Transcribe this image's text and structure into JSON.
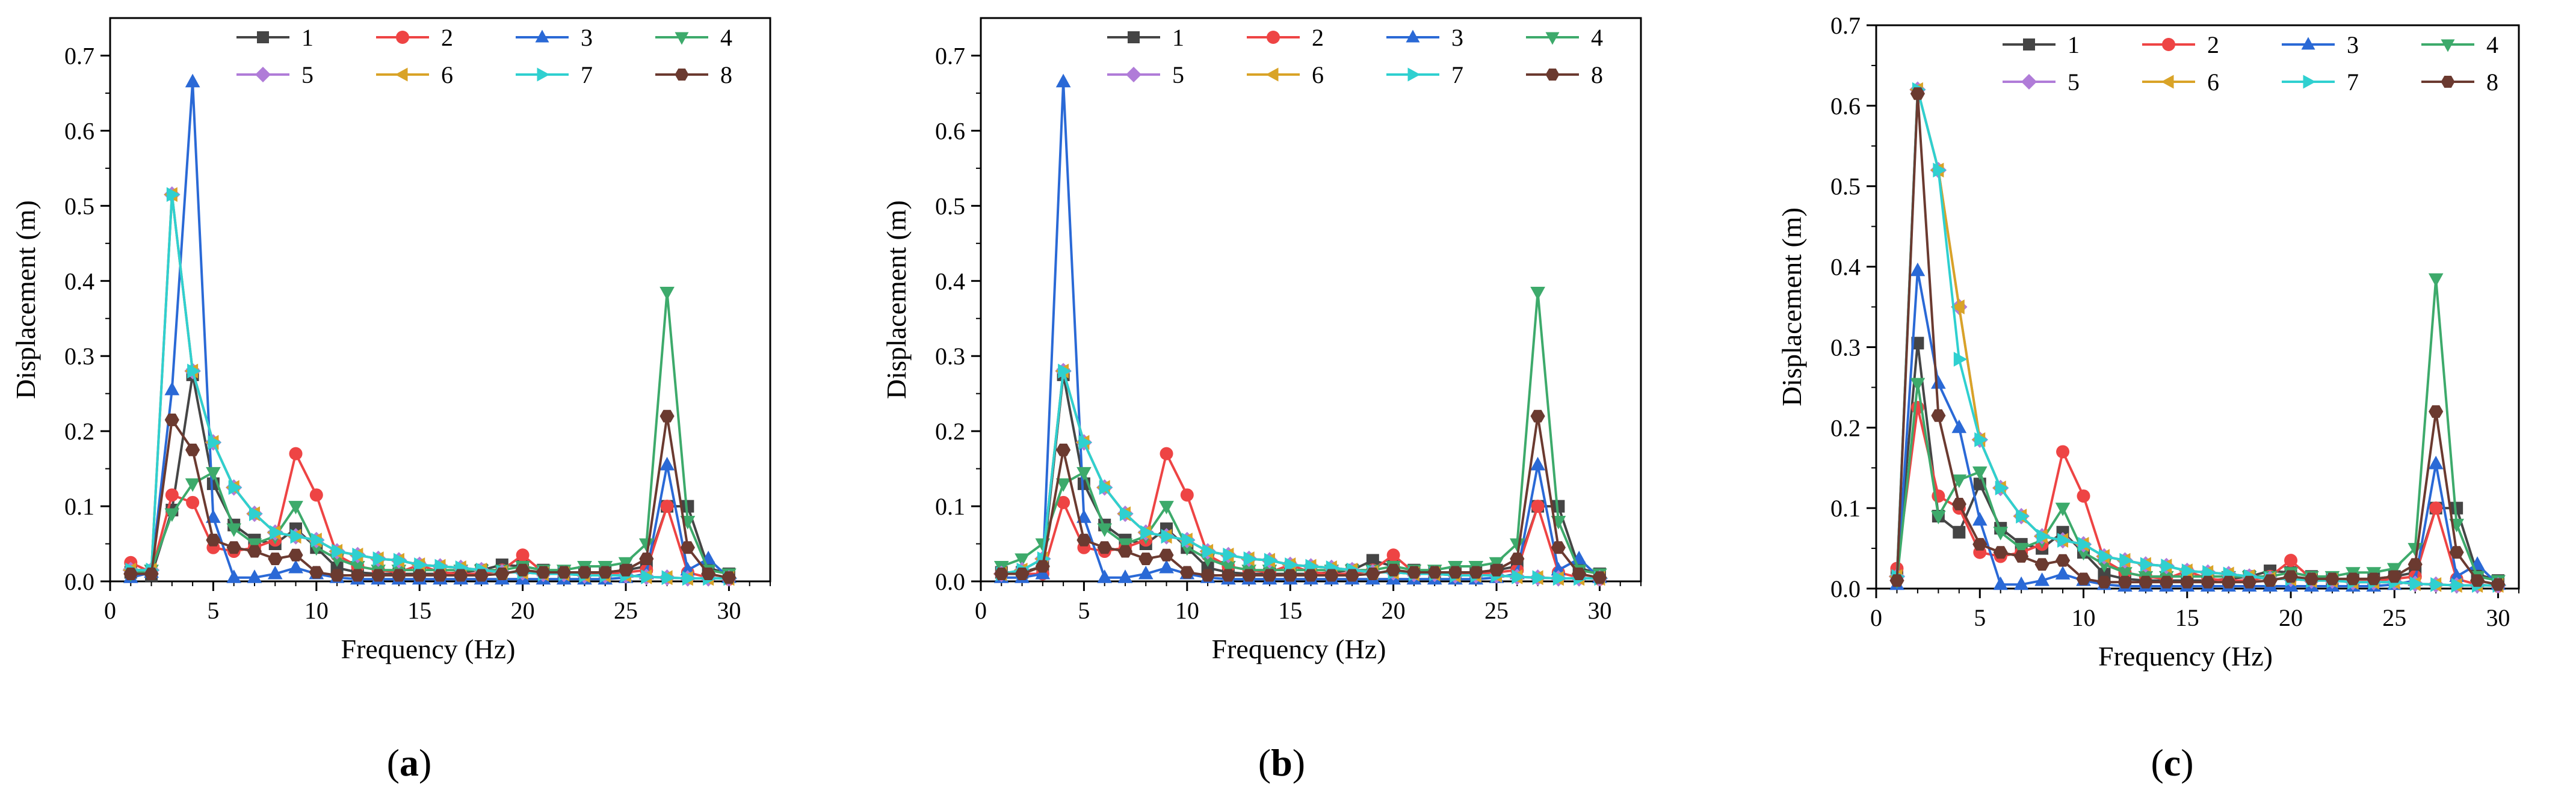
{
  "figure": {
    "panel_labels": [
      "(a)",
      "(b)",
      "(c)"
    ]
  },
  "colors": {
    "s1": "#454545",
    "s2": "#ee4444",
    "s3": "#2a69d6",
    "s4": "#3daa6b",
    "s5": "#b07cd8",
    "s6": "#d9a327",
    "s7": "#2fd0d0",
    "s8": "#6b3a30"
  },
  "chart_data": [
    {
      "type": "line",
      "panel": "(a)",
      "xlabel": "Frequency (Hz)",
      "ylabel": "Displacement (m)",
      "xlim": [
        0,
        32
      ],
      "ylim": [
        0,
        0.75
      ],
      "xticks": [
        0,
        5,
        10,
        15,
        20,
        25,
        30
      ],
      "yticks": [
        0.0,
        0.1,
        0.2,
        0.3,
        0.4,
        0.5,
        0.6,
        0.7
      ],
      "ytick_labels": [
        "0.0",
        "0.1",
        "0.2",
        "0.3",
        "0.4",
        "0.5",
        "0.6",
        "0.7"
      ],
      "legend_location": "top-center",
      "x": [
        1,
        2,
        3,
        4,
        5,
        6,
        7,
        8,
        9,
        10,
        11,
        12,
        13,
        14,
        15,
        16,
        17,
        18,
        19,
        20,
        21,
        22,
        23,
        24,
        25,
        26,
        27,
        28,
        29,
        30
      ],
      "series": [
        {
          "name": "1",
          "marker": "square",
          "values": [
            0.012,
            0.008,
            0.095,
            0.275,
            0.13,
            0.075,
            0.055,
            0.05,
            0.07,
            0.045,
            0.018,
            0.012,
            0.01,
            0.01,
            0.01,
            0.01,
            0.012,
            0.015,
            0.022,
            0.02,
            0.015,
            0.012,
            0.012,
            0.012,
            0.015,
            0.02,
            0.1,
            0.1,
            0.018,
            0.01
          ]
        },
        {
          "name": "2",
          "marker": "circle",
          "values": [
            0.025,
            0.012,
            0.115,
            0.105,
            0.045,
            0.04,
            0.045,
            0.055,
            0.17,
            0.115,
            0.035,
            0.02,
            0.015,
            0.012,
            0.022,
            0.012,
            0.01,
            0.01,
            0.015,
            0.035,
            0.012,
            0.01,
            0.01,
            0.01,
            0.012,
            0.015,
            0.1,
            0.012,
            0.005,
            0.003
          ]
        },
        {
          "name": "3",
          "marker": "triangle-up",
          "values": [
            0.005,
            0.012,
            0.255,
            0.665,
            0.085,
            0.005,
            0.005,
            0.01,
            0.018,
            0.01,
            0.005,
            0.003,
            0.003,
            0.003,
            0.003,
            0.003,
            0.003,
            0.003,
            0.003,
            0.003,
            0.003,
            0.003,
            0.003,
            0.003,
            0.005,
            0.01,
            0.155,
            0.015,
            0.03,
            0.005
          ]
        },
        {
          "name": "4",
          "marker": "triangle-down",
          "values": [
            0.01,
            0.015,
            0.09,
            0.13,
            0.145,
            0.07,
            0.05,
            0.06,
            0.1,
            0.045,
            0.03,
            0.02,
            0.015,
            0.015,
            0.015,
            0.015,
            0.015,
            0.015,
            0.015,
            0.02,
            0.015,
            0.015,
            0.02,
            0.02,
            0.025,
            0.05,
            0.385,
            0.08,
            0.015,
            0.01
          ]
        },
        {
          "name": "5",
          "marker": "diamond",
          "values": [
            0.015,
            0.015,
            0.515,
            0.28,
            0.185,
            0.125,
            0.09,
            0.065,
            0.06,
            0.055,
            0.04,
            0.035,
            0.03,
            0.028,
            0.022,
            0.02,
            0.018,
            0.015,
            0.012,
            0.012,
            0.01,
            0.01,
            0.008,
            0.008,
            0.008,
            0.006,
            0.005,
            0.004,
            0.004,
            0.004
          ]
        },
        {
          "name": "6",
          "marker": "triangle-left",
          "values": [
            0.015,
            0.015,
            0.515,
            0.28,
            0.185,
            0.125,
            0.09,
            0.065,
            0.06,
            0.055,
            0.04,
            0.035,
            0.03,
            0.028,
            0.022,
            0.02,
            0.018,
            0.015,
            0.012,
            0.012,
            0.01,
            0.01,
            0.008,
            0.008,
            0.008,
            0.006,
            0.005,
            0.004,
            0.004,
            0.004
          ]
        },
        {
          "name": "7",
          "marker": "triangle-right",
          "values": [
            0.015,
            0.015,
            0.515,
            0.28,
            0.185,
            0.125,
            0.09,
            0.065,
            0.06,
            0.055,
            0.04,
            0.035,
            0.03,
            0.028,
            0.022,
            0.02,
            0.018,
            0.015,
            0.012,
            0.012,
            0.01,
            0.01,
            0.008,
            0.008,
            0.008,
            0.006,
            0.005,
            0.004,
            0.004,
            0.004
          ]
        },
        {
          "name": "8",
          "marker": "hexagon",
          "values": [
            0.01,
            0.01,
            0.215,
            0.175,
            0.055,
            0.045,
            0.04,
            0.03,
            0.035,
            0.012,
            0.008,
            0.008,
            0.008,
            0.008,
            0.008,
            0.008,
            0.008,
            0.008,
            0.01,
            0.015,
            0.012,
            0.012,
            0.012,
            0.012,
            0.015,
            0.03,
            0.22,
            0.045,
            0.01,
            0.005
          ]
        }
      ]
    },
    {
      "type": "line",
      "panel": "(b)",
      "xlabel": "Frequency (Hz)",
      "ylabel": "Displacement (m)",
      "xlim": [
        0,
        32
      ],
      "ylim": [
        0,
        0.75
      ],
      "xticks": [
        0,
        5,
        10,
        15,
        20,
        25,
        30
      ],
      "yticks": [
        0.0,
        0.1,
        0.2,
        0.3,
        0.4,
        0.5,
        0.6,
        0.7
      ],
      "ytick_labels": [
        "0.0",
        "0.1",
        "0.2",
        "0.3",
        "0.4",
        "0.5",
        "0.6",
        "0.7"
      ],
      "legend_location": "top-center",
      "x": [
        1,
        2,
        3,
        4,
        5,
        6,
        7,
        8,
        9,
        10,
        11,
        12,
        13,
        14,
        15,
        16,
        17,
        18,
        19,
        20,
        21,
        22,
        23,
        24,
        25,
        26,
        27,
        28,
        29,
        30
      ],
      "series": [
        {
          "name": "1",
          "marker": "square",
          "values": [
            0.012,
            0.012,
            0.02,
            0.275,
            0.13,
            0.075,
            0.055,
            0.05,
            0.07,
            0.045,
            0.018,
            0.012,
            0.01,
            0.01,
            0.01,
            0.01,
            0.012,
            0.015,
            0.028,
            0.02,
            0.015,
            0.012,
            0.012,
            0.012,
            0.015,
            0.02,
            0.1,
            0.1,
            0.018,
            0.01
          ]
        },
        {
          "name": "2",
          "marker": "circle",
          "values": [
            0.01,
            0.01,
            0.01,
            0.105,
            0.045,
            0.04,
            0.045,
            0.055,
            0.17,
            0.115,
            0.035,
            0.02,
            0.015,
            0.012,
            0.022,
            0.012,
            0.01,
            0.01,
            0.015,
            0.035,
            0.012,
            0.01,
            0.01,
            0.01,
            0.012,
            0.015,
            0.1,
            0.012,
            0.005,
            0.003
          ]
        },
        {
          "name": "3",
          "marker": "triangle-up",
          "values": [
            0.005,
            0.005,
            0.01,
            0.665,
            0.085,
            0.005,
            0.005,
            0.01,
            0.018,
            0.01,
            0.005,
            0.003,
            0.003,
            0.003,
            0.003,
            0.003,
            0.003,
            0.003,
            0.003,
            0.003,
            0.003,
            0.003,
            0.003,
            0.003,
            0.005,
            0.01,
            0.155,
            0.015,
            0.03,
            0.005
          ]
        },
        {
          "name": "4",
          "marker": "triangle-down",
          "values": [
            0.02,
            0.03,
            0.05,
            0.13,
            0.145,
            0.07,
            0.05,
            0.06,
            0.1,
            0.045,
            0.03,
            0.02,
            0.015,
            0.015,
            0.015,
            0.015,
            0.015,
            0.015,
            0.015,
            0.02,
            0.015,
            0.015,
            0.02,
            0.02,
            0.025,
            0.05,
            0.385,
            0.08,
            0.015,
            0.01
          ]
        },
        {
          "name": "5",
          "marker": "diamond",
          "values": [
            0.01,
            0.015,
            0.03,
            0.28,
            0.185,
            0.125,
            0.09,
            0.065,
            0.06,
            0.055,
            0.04,
            0.035,
            0.03,
            0.028,
            0.022,
            0.02,
            0.018,
            0.015,
            0.012,
            0.012,
            0.01,
            0.01,
            0.008,
            0.008,
            0.008,
            0.006,
            0.005,
            0.004,
            0.004,
            0.004
          ]
        },
        {
          "name": "6",
          "marker": "triangle-left",
          "values": [
            0.01,
            0.015,
            0.03,
            0.28,
            0.185,
            0.125,
            0.09,
            0.065,
            0.06,
            0.055,
            0.04,
            0.035,
            0.03,
            0.028,
            0.022,
            0.02,
            0.018,
            0.015,
            0.012,
            0.012,
            0.01,
            0.01,
            0.008,
            0.008,
            0.008,
            0.006,
            0.005,
            0.004,
            0.004,
            0.004
          ]
        },
        {
          "name": "7",
          "marker": "triangle-right",
          "values": [
            0.01,
            0.015,
            0.03,
            0.28,
            0.185,
            0.125,
            0.09,
            0.065,
            0.06,
            0.055,
            0.04,
            0.035,
            0.03,
            0.028,
            0.022,
            0.02,
            0.018,
            0.015,
            0.012,
            0.012,
            0.01,
            0.01,
            0.008,
            0.008,
            0.008,
            0.006,
            0.005,
            0.004,
            0.004,
            0.004
          ]
        },
        {
          "name": "8",
          "marker": "hexagon",
          "values": [
            0.01,
            0.01,
            0.02,
            0.175,
            0.055,
            0.045,
            0.04,
            0.03,
            0.035,
            0.012,
            0.008,
            0.008,
            0.008,
            0.008,
            0.008,
            0.008,
            0.008,
            0.008,
            0.01,
            0.015,
            0.012,
            0.012,
            0.012,
            0.012,
            0.015,
            0.03,
            0.22,
            0.045,
            0.01,
            0.005
          ]
        }
      ]
    },
    {
      "type": "line",
      "panel": "(c)",
      "xlabel": "Frequency (Hz)",
      "ylabel": "Displacement (m)",
      "xlim": [
        0,
        31
      ],
      "ylim": [
        0,
        0.7
      ],
      "xticks": [
        0,
        5,
        10,
        15,
        20,
        25,
        30
      ],
      "yticks": [
        0.0,
        0.1,
        0.2,
        0.3,
        0.4,
        0.5,
        0.6,
        0.7
      ],
      "ytick_labels": [
        "0.0",
        "0.1",
        "0.2",
        "0.3",
        "0.4",
        "0.5",
        "0.6",
        "0.7"
      ],
      "legend_location": "top-center",
      "x": [
        1,
        2,
        3,
        4,
        5,
        6,
        7,
        8,
        9,
        10,
        11,
        12,
        13,
        14,
        15,
        16,
        17,
        18,
        19,
        20,
        21,
        22,
        23,
        24,
        25,
        26,
        27,
        28,
        29,
        30
      ],
      "series": [
        {
          "name": "1",
          "marker": "square",
          "values": [
            0.02,
            0.305,
            0.09,
            0.07,
            0.13,
            0.075,
            0.055,
            0.05,
            0.07,
            0.045,
            0.018,
            0.012,
            0.01,
            0.01,
            0.01,
            0.01,
            0.012,
            0.015,
            0.022,
            0.02,
            0.015,
            0.012,
            0.012,
            0.012,
            0.015,
            0.02,
            0.1,
            0.1,
            0.018,
            0.01
          ]
        },
        {
          "name": "2",
          "marker": "circle",
          "values": [
            0.025,
            0.225,
            0.115,
            0.1,
            0.045,
            0.04,
            0.045,
            0.055,
            0.17,
            0.115,
            0.035,
            0.02,
            0.015,
            0.012,
            0.022,
            0.012,
            0.01,
            0.01,
            0.015,
            0.035,
            0.012,
            0.01,
            0.01,
            0.01,
            0.012,
            0.015,
            0.1,
            0.012,
            0.005,
            0.003
          ]
        },
        {
          "name": "3",
          "marker": "triangle-up",
          "values": [
            0.005,
            0.395,
            0.255,
            0.2,
            0.085,
            0.005,
            0.005,
            0.01,
            0.018,
            0.01,
            0.005,
            0.003,
            0.003,
            0.003,
            0.003,
            0.003,
            0.003,
            0.003,
            0.003,
            0.003,
            0.003,
            0.003,
            0.003,
            0.003,
            0.005,
            0.01,
            0.155,
            0.015,
            0.03,
            0.005
          ]
        },
        {
          "name": "4",
          "marker": "triangle-down",
          "values": [
            0.01,
            0.255,
            0.09,
            0.135,
            0.145,
            0.07,
            0.05,
            0.06,
            0.1,
            0.045,
            0.03,
            0.02,
            0.015,
            0.015,
            0.015,
            0.015,
            0.015,
            0.015,
            0.015,
            0.02,
            0.015,
            0.015,
            0.02,
            0.02,
            0.025,
            0.05,
            0.385,
            0.08,
            0.015,
            0.01
          ]
        },
        {
          "name": "5",
          "marker": "diamond",
          "values": [
            0.015,
            0.62,
            0.52,
            0.35,
            0.185,
            0.125,
            0.09,
            0.065,
            0.06,
            0.055,
            0.04,
            0.035,
            0.03,
            0.028,
            0.022,
            0.02,
            0.018,
            0.015,
            0.012,
            0.012,
            0.01,
            0.01,
            0.008,
            0.008,
            0.008,
            0.006,
            0.005,
            0.004,
            0.004,
            0.004
          ]
        },
        {
          "name": "6",
          "marker": "triangle-left",
          "values": [
            0.015,
            0.62,
            0.52,
            0.35,
            0.185,
            0.125,
            0.09,
            0.065,
            0.06,
            0.055,
            0.04,
            0.035,
            0.03,
            0.028,
            0.022,
            0.02,
            0.018,
            0.015,
            0.012,
            0.012,
            0.01,
            0.01,
            0.008,
            0.008,
            0.008,
            0.006,
            0.005,
            0.004,
            0.004,
            0.004
          ]
        },
        {
          "name": "7",
          "marker": "triangle-right",
          "values": [
            0.015,
            0.62,
            0.52,
            0.285,
            0.185,
            0.125,
            0.09,
            0.065,
            0.06,
            0.055,
            0.04,
            0.035,
            0.03,
            0.028,
            0.022,
            0.02,
            0.018,
            0.015,
            0.012,
            0.012,
            0.01,
            0.01,
            0.008,
            0.008,
            0.008,
            0.006,
            0.005,
            0.004,
            0.004,
            0.004
          ]
        },
        {
          "name": "8",
          "marker": "hexagon",
          "values": [
            0.01,
            0.615,
            0.215,
            0.105,
            0.055,
            0.045,
            0.04,
            0.03,
            0.035,
            0.012,
            0.008,
            0.008,
            0.008,
            0.008,
            0.008,
            0.008,
            0.008,
            0.008,
            0.01,
            0.015,
            0.012,
            0.012,
            0.012,
            0.012,
            0.015,
            0.03,
            0.22,
            0.045,
            0.01,
            0.005
          ]
        }
      ]
    }
  ]
}
